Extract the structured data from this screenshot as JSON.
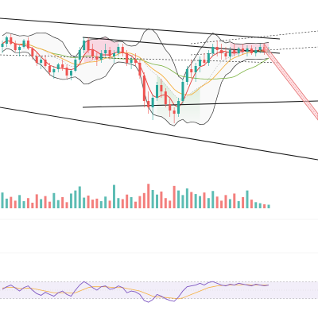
{
  "colors": {
    "bull": "#26a69a",
    "bear": "#ef5350",
    "band": "#333333",
    "ma_fast": "#e53935",
    "ma_mid": "#f5b041",
    "ma_slow": "#7cb342",
    "trend": "#1a1a1a",
    "rsi_line": "#7e57c2",
    "rsi_signal": "#f5b041",
    "rsi_fill": "#ede7f6",
    "sell_channel": "#e57373"
  },
  "chart_data": [
    {
      "type": "candlestick",
      "title": "",
      "xlabel": "",
      "ylabel": "",
      "grid": false,
      "legend": "none",
      "ylim": [
        0,
        100
      ],
      "bollinger": true,
      "moving_averages": [
        "ma_fast",
        "ma_mid",
        "ma_slow"
      ],
      "annotations": [
        {
          "name": "upper-left-trendline",
          "x": [
            0,
            88
          ],
          "y": [
            96,
            83
          ]
        },
        {
          "name": "upper-right-trendline",
          "x": [
            26,
            88
          ],
          "y": [
            84,
            74
          ]
        },
        {
          "name": "channel-top-line",
          "x": [
            60,
            100
          ],
          "y": [
            80,
            88
          ]
        },
        {
          "name": "channel-bottom-line",
          "x": [
            60,
            100
          ],
          "y": [
            73,
            78
          ]
        },
        {
          "name": "mid-dashed-support",
          "x": [
            0,
            88
          ],
          "y": [
            73,
            68
          ]
        },
        {
          "name": "lower-trendline",
          "x": [
            26,
            100
          ],
          "y": [
            40,
            44
          ]
        },
        {
          "name": "bottom-trendline",
          "x": [
            0,
            100
          ],
          "y": [
            40,
            7
          ]
        }
      ],
      "candles": [
        [
          78,
          82,
          74,
          80
        ],
        [
          80,
          85,
          78,
          84
        ],
        [
          84,
          86,
          79,
          80
        ],
        [
          80,
          82,
          75,
          76
        ],
        [
          76,
          79,
          72,
          78
        ],
        [
          78,
          83,
          77,
          82
        ],
        [
          82,
          84,
          76,
          77
        ],
        [
          77,
          78,
          70,
          72
        ],
        [
          72,
          75,
          66,
          68
        ],
        [
          68,
          72,
          64,
          70
        ],
        [
          70,
          73,
          65,
          66
        ],
        [
          66,
          68,
          60,
          62
        ],
        [
          62,
          66,
          58,
          64
        ],
        [
          64,
          68,
          62,
          67
        ],
        [
          67,
          70,
          63,
          65
        ],
        [
          65,
          67,
          58,
          60
        ],
        [
          60,
          64,
          57,
          63
        ],
        [
          63,
          72,
          62,
          70
        ],
        [
          70,
          78,
          68,
          76
        ],
        [
          76,
          84,
          74,
          82
        ],
        [
          82,
          84,
          74,
          76
        ],
        [
          76,
          80,
          70,
          72
        ],
        [
          72,
          75,
          66,
          70
        ],
        [
          70,
          76,
          68,
          74
        ],
        [
          74,
          80,
          72,
          76
        ],
        [
          76,
          78,
          70,
          72
        ],
        [
          72,
          76,
          68,
          74
        ],
        [
          74,
          80,
          72,
          78
        ],
        [
          78,
          80,
          72,
          74
        ],
        [
          74,
          76,
          66,
          68
        ],
        [
          68,
          72,
          64,
          70
        ],
        [
          70,
          74,
          66,
          68
        ],
        [
          68,
          70,
          58,
          60
        ],
        [
          60,
          62,
          40,
          44
        ],
        [
          44,
          50,
          36,
          40
        ],
        [
          40,
          48,
          32,
          46
        ],
        [
          46,
          56,
          44,
          54
        ],
        [
          54,
          58,
          46,
          50
        ],
        [
          50,
          52,
          40,
          42
        ],
        [
          42,
          46,
          34,
          38
        ],
        [
          38,
          40,
          30,
          36
        ],
        [
          36,
          46,
          34,
          44
        ],
        [
          44,
          58,
          42,
          56
        ],
        [
          56,
          66,
          54,
          64
        ],
        [
          64,
          70,
          58,
          62
        ],
        [
          62,
          68,
          56,
          66
        ],
        [
          66,
          72,
          62,
          70
        ],
        [
          70,
          74,
          66,
          68
        ],
        [
          68,
          76,
          66,
          74
        ],
        [
          74,
          80,
          72,
          78
        ],
        [
          78,
          82,
          72,
          76
        ],
        [
          76,
          80,
          70,
          74
        ],
        [
          74,
          78,
          70,
          72
        ],
        [
          72,
          78,
          70,
          76
        ],
        [
          76,
          80,
          72,
          74
        ],
        [
          74,
          78,
          72,
          77
        ],
        [
          77,
          80,
          73,
          75
        ],
        [
          75,
          79,
          72,
          77
        ],
        [
          77,
          79,
          73,
          74
        ],
        [
          74,
          78,
          72,
          76
        ],
        [
          76,
          80,
          74,
          78
        ],
        [
          78,
          79,
          73,
          75
        ],
        [
          75,
          78,
          73,
          76
        ]
      ]
    },
    {
      "type": "bar",
      "title": "",
      "xlabel": "",
      "ylabel": "",
      "grid": false,
      "legend": "none",
      "ylim": [
        0,
        100
      ],
      "values": [
        62,
        38,
        45,
        30,
        52,
        28,
        40,
        22,
        55,
        36,
        48,
        26,
        60,
        32,
        44,
        24,
        58,
        70,
        86,
        42,
        50,
        34,
        38,
        28,
        46,
        30,
        92,
        40,
        36,
        54,
        44,
        26,
        48,
        60,
        96,
        72,
        54,
        66,
        40,
        30,
        88,
        70,
        52,
        78,
        64,
        56,
        48,
        62,
        40,
        68,
        46,
        30,
        52,
        36,
        58,
        28,
        44,
        70,
        34,
        24,
        20,
        16,
        14
      ]
    },
    {
      "type": "line",
      "title": "",
      "xlabel": "",
      "ylabel": "",
      "grid": false,
      "legend": "none",
      "ylim": [
        0,
        100
      ],
      "band": [
        30,
        70
      ],
      "series": [
        {
          "values": [
            52,
            58,
            62,
            55,
            48,
            56,
            60,
            50,
            42,
            38,
            45,
            40,
            36,
            44,
            48,
            40,
            36,
            50,
            62,
            70,
            64,
            56,
            50,
            58,
            60,
            52,
            54,
            60,
            56,
            44,
            48,
            46,
            40,
            26,
            22,
            28,
            40,
            36,
            30,
            26,
            24,
            34,
            48,
            58,
            60,
            62,
            66,
            62,
            68,
            70,
            66,
            62,
            60,
            64,
            62,
            66,
            64,
            62,
            60,
            64,
            62,
            60,
            62
          ]
        },
        {
          "values": [
            55,
            56,
            57,
            56,
            54,
            54,
            55,
            54,
            52,
            50,
            48,
            46,
            44,
            44,
            44,
            44,
            43,
            44,
            48,
            52,
            56,
            58,
            58,
            58,
            58,
            57,
            56,
            56,
            56,
            54,
            52,
            50,
            48,
            44,
            40,
            36,
            34,
            34,
            33,
            32,
            31,
            30,
            32,
            36,
            40,
            44,
            48,
            52,
            56,
            58,
            60,
            61,
            61,
            62,
            62,
            62,
            63,
            63,
            62,
            62,
            62,
            62,
            62
          ]
        }
      ]
    }
  ]
}
